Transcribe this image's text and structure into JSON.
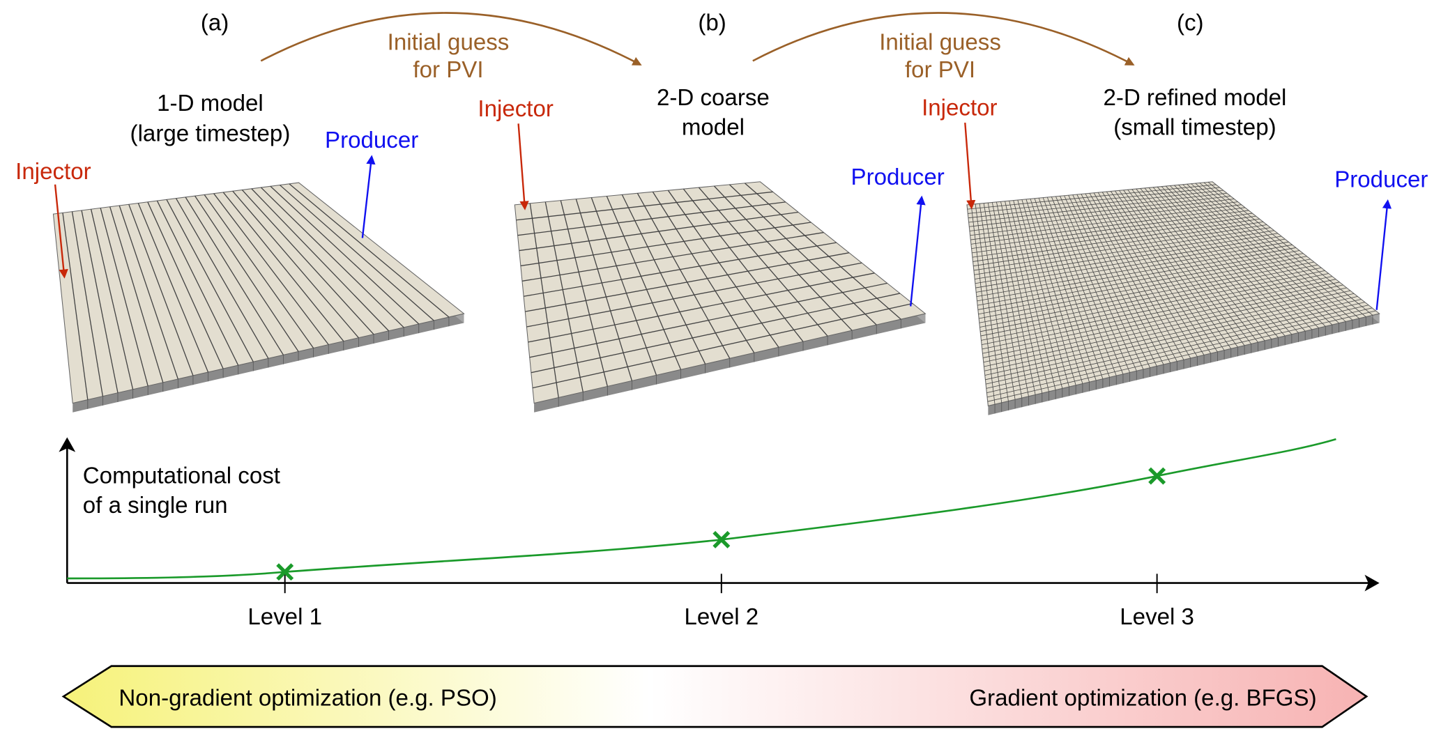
{
  "panels": [
    {
      "letter": "(a)",
      "title_line1": "1-D model",
      "title_line2": "(large timestep)",
      "injector": "Injector",
      "producer": "Producer",
      "grid": "1-D"
    },
    {
      "letter": "(b)",
      "title_line1": "2-D coarse",
      "title_line2": "model",
      "injector": "Injector",
      "producer": "Producer",
      "grid": "2-D coarse"
    },
    {
      "letter": "(c)",
      "title_line1": "2-D refined model",
      "title_line2": "(small timestep)",
      "injector": "Injector",
      "producer": "Producer",
      "grid": "2-D refined"
    }
  ],
  "transfers": [
    {
      "line1": "Initial guess",
      "line2": "for PVI"
    },
    {
      "line1": "Initial guess",
      "line2": "for PVI"
    }
  ],
  "cost_plot": {
    "ylabel_line1": "Computational cost",
    "ylabel_line2": "of a single run",
    "levels": [
      "Level 1",
      "Level 2",
      "Level 3"
    ],
    "marker": "x"
  },
  "optimization_bar": {
    "left_label": "Non-gradient optimization (e.g. PSO)",
    "right_label": "Gradient optimization (e.g. BFGS)"
  },
  "colors": {
    "injector": "#c8280a",
    "producer": "#1010f0",
    "transfer": "#9a6028",
    "curve": "#1a9a2a",
    "slab_top": "#e3ded0",
    "slab_side": "#8a8a8a"
  }
}
